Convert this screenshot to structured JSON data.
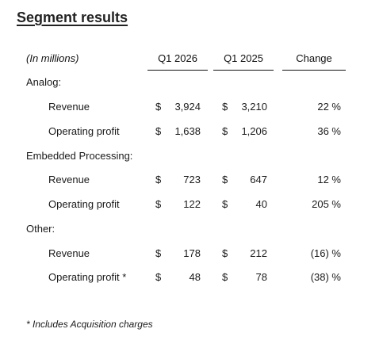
{
  "title": "Segment results",
  "header": {
    "units": "(In millions)",
    "col1": "Q1 2026",
    "col2": "Q1 2025",
    "col3": "Change"
  },
  "segments": [
    {
      "name": "Analog:",
      "rows": [
        {
          "label": "Revenue",
          "cur1": "$",
          "v1": "3,924",
          "cur2": "$",
          "v2": "3,210",
          "change": "22 %"
        },
        {
          "label": "Operating profit",
          "cur1": "$",
          "v1": "1,638",
          "cur2": "$",
          "v2": "1,206",
          "change": "36 %"
        }
      ]
    },
    {
      "name": "Embedded Processing:",
      "rows": [
        {
          "label": "Revenue",
          "cur1": "$",
          "v1": "723",
          "cur2": "$",
          "v2": "647",
          "change": "12 %"
        },
        {
          "label": "Operating profit",
          "cur1": "$",
          "v1": "122",
          "cur2": "$",
          "v2": "40",
          "change": "205 %"
        }
      ]
    },
    {
      "name": "Other:",
      "rows": [
        {
          "label": "Revenue",
          "cur1": "$",
          "v1": "178",
          "cur2": "$",
          "v2": "212",
          "change": "(16) %"
        },
        {
          "label": "Operating profit *",
          "cur1": "$",
          "v1": "48",
          "cur2": "$",
          "v2": "78",
          "change": "(38) %"
        }
      ]
    }
  ],
  "footnote": "* Includes Acquisition charges"
}
